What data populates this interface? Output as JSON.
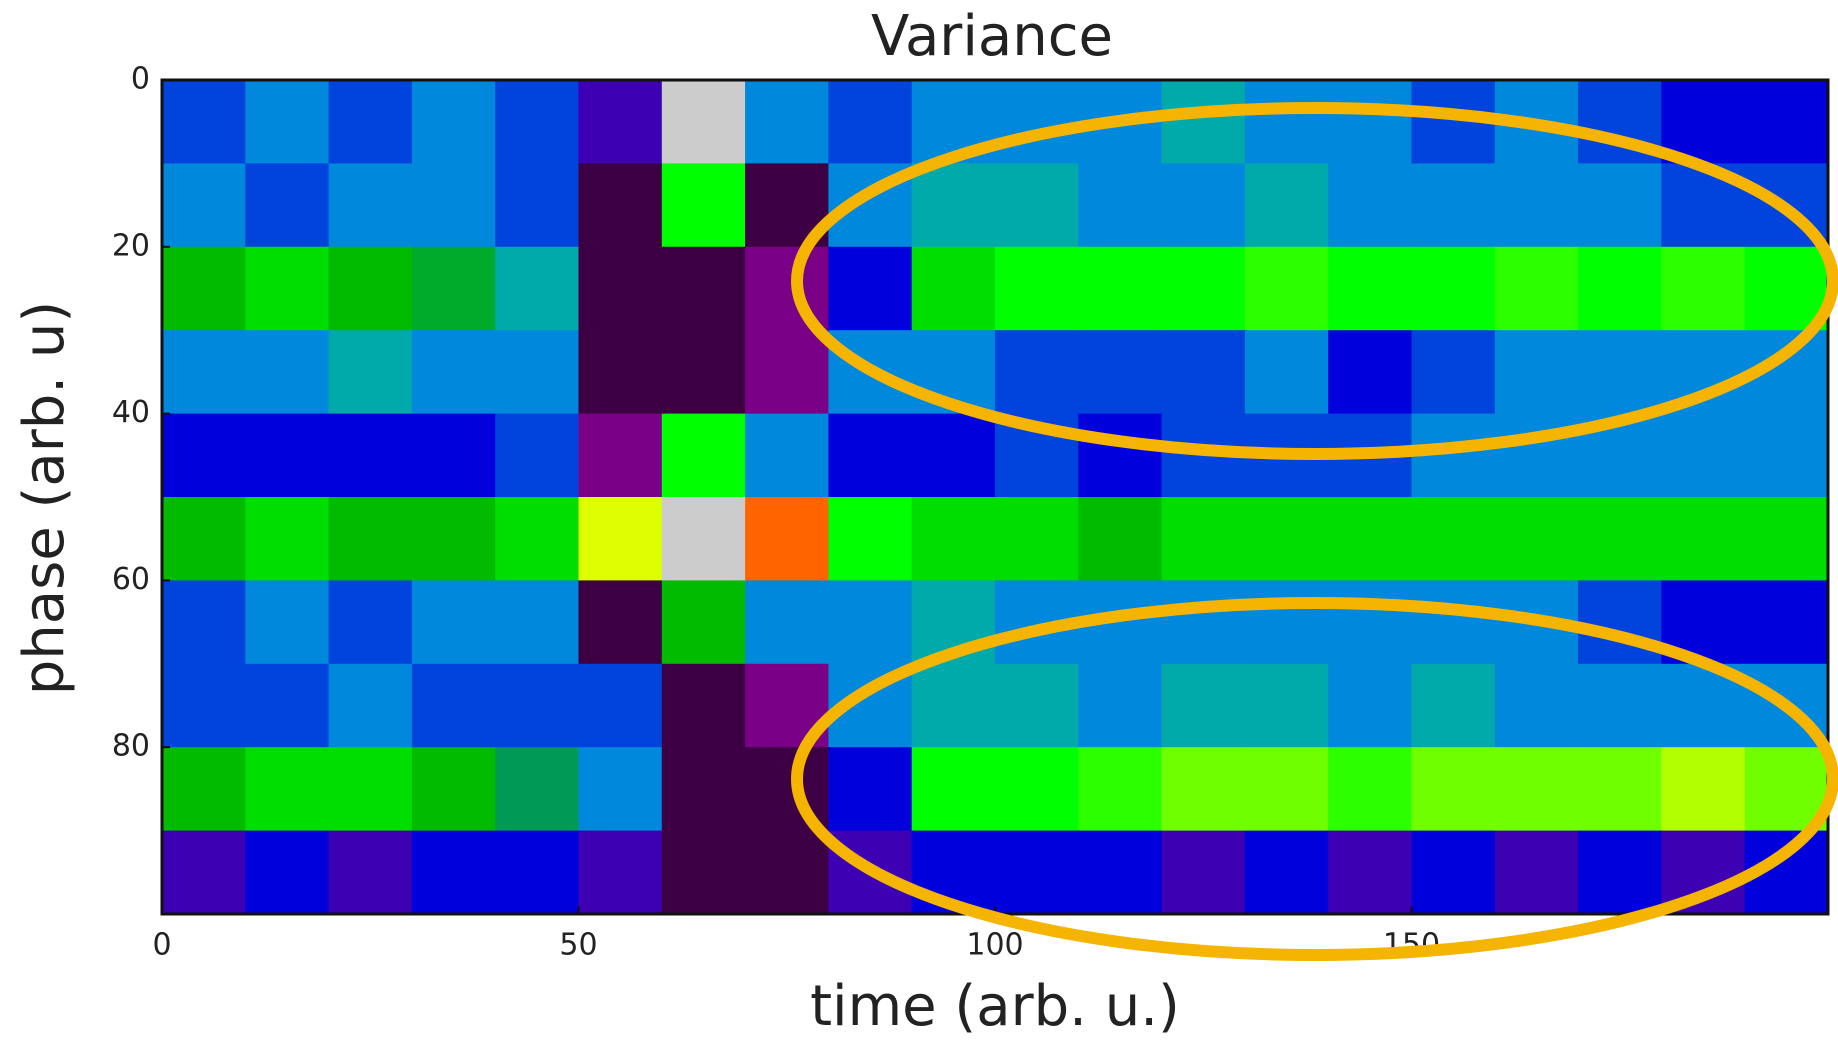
{
  "chart_data": {
    "type": "heatmap",
    "title": "Variance",
    "x_label": "time (arb. u.)",
    "y_label": "phase (arb. u)",
    "xlim": [
      0,
      200
    ],
    "ylim": [
      0,
      100
    ],
    "y_inverted": true,
    "xticks": [
      0,
      50,
      100,
      150
    ],
    "yticks": [
      0,
      20,
      40,
      60,
      80
    ],
    "colormap": "nipy_spectral",
    "zlim": [
      0,
      1
    ],
    "z": [
      [
        0.25,
        0.3,
        0.25,
        0.3,
        0.25,
        0.15,
        1.0,
        0.3,
        0.25,
        0.3,
        0.3,
        0.3,
        0.35,
        0.3,
        0.3,
        0.25,
        0.3,
        0.25,
        0.2,
        0.2
      ],
      [
        0.3,
        0.25,
        0.3,
        0.3,
        0.25,
        0.05,
        0.6,
        0.05,
        0.3,
        0.35,
        0.35,
        0.3,
        0.3,
        0.35,
        0.3,
        0.3,
        0.3,
        0.3,
        0.25,
        0.25
      ],
      [
        0.5,
        0.55,
        0.5,
        0.45,
        0.35,
        0.05,
        0.05,
        0.1,
        0.2,
        0.55,
        0.6,
        0.6,
        0.6,
        0.62,
        0.6,
        0.6,
        0.62,
        0.6,
        0.62,
        0.6
      ],
      [
        0.3,
        0.3,
        0.35,
        0.3,
        0.3,
        0.05,
        0.05,
        0.1,
        0.3,
        0.3,
        0.25,
        0.25,
        0.25,
        0.3,
        0.2,
        0.25,
        0.3,
        0.3,
        0.3,
        0.3
      ],
      [
        0.2,
        0.2,
        0.2,
        0.2,
        0.25,
        0.1,
        0.6,
        0.3,
        0.2,
        0.2,
        0.25,
        0.2,
        0.25,
        0.25,
        0.25,
        0.3,
        0.3,
        0.3,
        0.3,
        0.3
      ],
      [
        0.5,
        0.55,
        0.5,
        0.5,
        0.55,
        0.7,
        1.0,
        0.8,
        0.6,
        0.55,
        0.55,
        0.5,
        0.55,
        0.55,
        0.55,
        0.55,
        0.55,
        0.55,
        0.55,
        0.55
      ],
      [
        0.25,
        0.3,
        0.25,
        0.3,
        0.3,
        0.05,
        0.5,
        0.3,
        0.3,
        0.35,
        0.3,
        0.3,
        0.3,
        0.3,
        0.3,
        0.3,
        0.3,
        0.25,
        0.2,
        0.2
      ],
      [
        0.25,
        0.25,
        0.3,
        0.25,
        0.25,
        0.25,
        0.05,
        0.1,
        0.3,
        0.35,
        0.35,
        0.3,
        0.35,
        0.35,
        0.3,
        0.35,
        0.3,
        0.3,
        0.3,
        0.3
      ],
      [
        0.5,
        0.55,
        0.55,
        0.5,
        0.4,
        0.3,
        0.05,
        0.05,
        0.2,
        0.6,
        0.6,
        0.62,
        0.65,
        0.65,
        0.62,
        0.65,
        0.65,
        0.65,
        0.68,
        0.65
      ],
      [
        0.15,
        0.2,
        0.15,
        0.2,
        0.2,
        0.15,
        0.05,
        0.05,
        0.15,
        0.2,
        0.2,
        0.2,
        0.15,
        0.2,
        0.15,
        0.2,
        0.15,
        0.2,
        0.15,
        0.2
      ]
    ]
  }
}
